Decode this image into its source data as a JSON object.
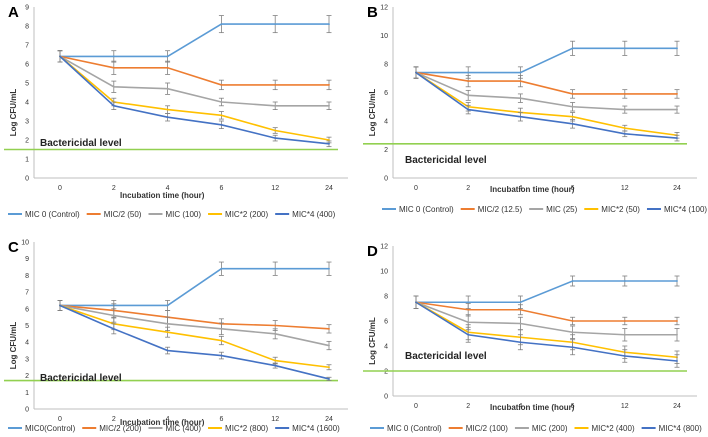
{
  "chart_data": [
    {
      "panel": "A",
      "type": "line",
      "categories": [
        "0",
        "2",
        "4",
        "6",
        "12",
        "24"
      ],
      "xlabel": "Incubation time (hour)",
      "ylabel": "Log CFU/mL",
      "ylim": [
        0,
        9
      ],
      "yticks": [
        0,
        1,
        2,
        3,
        4,
        5,
        6,
        7,
        8,
        9
      ],
      "annotation": {
        "text": "Bactericidal level",
        "value": 1.5
      },
      "legend": "bottom",
      "series": [
        {
          "name": "MIC 0 (Control)",
          "color": "#5b9bd5",
          "values": [
            6.4,
            6.4,
            6.4,
            8.1,
            8.1,
            8.1
          ],
          "errors": [
            0.3,
            0.3,
            0.3,
            0.45,
            0.45,
            0.45
          ]
        },
        {
          "name": "MIC/2 (50)",
          "color": "#ed7d31",
          "values": [
            6.4,
            5.8,
            5.8,
            4.9,
            4.9,
            4.9
          ],
          "errors": [
            0.3,
            0.35,
            0.35,
            0.25,
            0.25,
            0.25
          ]
        },
        {
          "name": "MIC (100)",
          "color": "#a5a5a5",
          "values": [
            6.4,
            4.8,
            4.7,
            4.0,
            3.8,
            3.8
          ],
          "errors": [
            0.3,
            0.3,
            0.3,
            0.2,
            0.2,
            0.2
          ]
        },
        {
          "name": "MIC*2 (200)",
          "color": "#ffc000",
          "values": [
            6.4,
            4.0,
            3.6,
            3.3,
            2.5,
            2.0
          ],
          "errors": [
            0.3,
            0.2,
            0.2,
            0.2,
            0.15,
            0.15
          ]
        },
        {
          "name": "MIC*4 (400)",
          "color": "#4472c4",
          "values": [
            6.4,
            3.8,
            3.2,
            2.8,
            2.1,
            1.8
          ],
          "errors": [
            0.3,
            0.2,
            0.2,
            0.2,
            0.15,
            0.15
          ]
        }
      ]
    },
    {
      "panel": "B",
      "type": "line",
      "categories": [
        "0",
        "2",
        "4",
        "6",
        "12",
        "24"
      ],
      "xlabel": "Incubation time (hour)",
      "ylabel": "Log CFU/mL",
      "ylim": [
        0,
        12
      ],
      "yticks": [
        0,
        2,
        4,
        6,
        8,
        10,
        12
      ],
      "annotation": {
        "text": "Bactericidal level",
        "value": 2.4
      },
      "legend": "bottom",
      "series": [
        {
          "name": "MIC 0 (Control)",
          "color": "#5b9bd5",
          "values": [
            7.4,
            7.4,
            7.4,
            9.1,
            9.1,
            9.1
          ],
          "errors": [
            0.4,
            0.4,
            0.4,
            0.5,
            0.5,
            0.5
          ]
        },
        {
          "name": "MIC/2 (12.5)",
          "color": "#ed7d31",
          "values": [
            7.4,
            6.8,
            6.8,
            5.9,
            5.9,
            5.9
          ],
          "errors": [
            0.4,
            0.4,
            0.4,
            0.3,
            0.3,
            0.3
          ]
        },
        {
          "name": "MIC (25)",
          "color": "#a5a5a5",
          "values": [
            7.4,
            5.8,
            5.6,
            5.0,
            4.8,
            4.8
          ],
          "errors": [
            0.4,
            0.35,
            0.3,
            0.3,
            0.25,
            0.25
          ]
        },
        {
          "name": "MIC*2 (50)",
          "color": "#ffc000",
          "values": [
            7.4,
            5.0,
            4.6,
            4.3,
            3.5,
            3.0
          ],
          "errors": [
            0.4,
            0.3,
            0.3,
            0.3,
            0.2,
            0.2
          ]
        },
        {
          "name": "MIC*4 (100)",
          "color": "#4472c4",
          "values": [
            7.4,
            4.8,
            4.3,
            3.8,
            3.1,
            2.8
          ],
          "errors": [
            0.4,
            0.3,
            0.3,
            0.3,
            0.2,
            0.2
          ]
        }
      ]
    },
    {
      "panel": "C",
      "type": "line",
      "categories": [
        "0",
        "2",
        "4",
        "6",
        "12",
        "24"
      ],
      "xlabel": "Incubation time (hour)",
      "ylabel": "Log CFU/mL",
      "ylim": [
        0,
        10
      ],
      "yticks": [
        0,
        1,
        2,
        3,
        4,
        5,
        6,
        7,
        8,
        9,
        10
      ],
      "annotation": {
        "text": "Bactericidal level",
        "value": 1.7
      },
      "legend": "bottom",
      "series": [
        {
          "name": "MIC0(Control)",
          "color": "#5b9bd5",
          "values": [
            6.2,
            6.2,
            6.2,
            8.4,
            8.4,
            8.4
          ],
          "errors": [
            0.3,
            0.3,
            0.3,
            0.4,
            0.4,
            0.4
          ]
        },
        {
          "name": "MIC/2 (200)",
          "color": "#ed7d31",
          "values": [
            6.2,
            5.9,
            5.5,
            5.1,
            5.0,
            4.8
          ],
          "errors": [
            0.3,
            0.4,
            0.4,
            0.3,
            0.3,
            0.25
          ]
        },
        {
          "name": "MIC (400)",
          "color": "#a5a5a5",
          "values": [
            6.2,
            5.6,
            5.1,
            4.8,
            4.5,
            3.8
          ],
          "errors": [
            0.3,
            0.4,
            0.4,
            0.35,
            0.3,
            0.25
          ]
        },
        {
          "name": "MIC*2 (800)",
          "color": "#ffc000",
          "values": [
            6.2,
            5.1,
            4.6,
            4.1,
            2.9,
            2.5
          ],
          "errors": [
            0.3,
            0.35,
            0.3,
            0.25,
            0.2,
            0.15
          ]
        },
        {
          "name": "MIC*4 (1600)",
          "color": "#4472c4",
          "values": [
            6.2,
            4.8,
            3.5,
            3.2,
            2.6,
            1.8
          ],
          "errors": [
            0.3,
            0.3,
            0.2,
            0.2,
            0.15,
            0.1
          ]
        }
      ]
    },
    {
      "panel": "D",
      "type": "line",
      "categories": [
        "0",
        "2",
        "4",
        "6",
        "12",
        "24"
      ],
      "xlabel": "Incubation time (hour)",
      "ylabel": "Log CFU/mL",
      "ylim": [
        0,
        12
      ],
      "yticks": [
        0,
        2,
        4,
        6,
        8,
        10,
        12
      ],
      "annotation": {
        "text": "Bactericidal level",
        "value": 2.0
      },
      "legend": "bottom",
      "series": [
        {
          "name": "MIC 0 (Control)",
          "color": "#5b9bd5",
          "values": [
            7.5,
            7.5,
            7.5,
            9.2,
            9.2,
            9.2
          ],
          "errors": [
            0.5,
            0.5,
            0.5,
            0.4,
            0.4,
            0.4
          ]
        },
        {
          "name": "MIC/2 (100)",
          "color": "#ed7d31",
          "values": [
            7.5,
            6.9,
            6.9,
            6.0,
            6.0,
            6.0
          ],
          "errors": [
            0.5,
            0.5,
            0.4,
            0.3,
            0.3,
            0.3
          ]
        },
        {
          "name": "MIC (200)",
          "color": "#a5a5a5",
          "values": [
            7.5,
            5.9,
            5.8,
            5.1,
            4.9,
            4.9
          ],
          "errors": [
            0.5,
            0.6,
            0.5,
            0.5,
            0.5,
            0.5
          ]
        },
        {
          "name": "MIC*2 (400)",
          "color": "#ffc000",
          "values": [
            7.5,
            5.1,
            4.7,
            4.3,
            3.5,
            3.1
          ],
          "errors": [
            0.5,
            0.6,
            0.6,
            0.6,
            0.5,
            0.5
          ]
        },
        {
          "name": "MIC*4 (800)",
          "color": "#4472c4",
          "values": [
            7.5,
            4.9,
            4.3,
            3.9,
            3.2,
            2.8
          ],
          "errors": [
            0.5,
            0.6,
            0.6,
            0.6,
            0.5,
            0.5
          ]
        }
      ]
    }
  ]
}
